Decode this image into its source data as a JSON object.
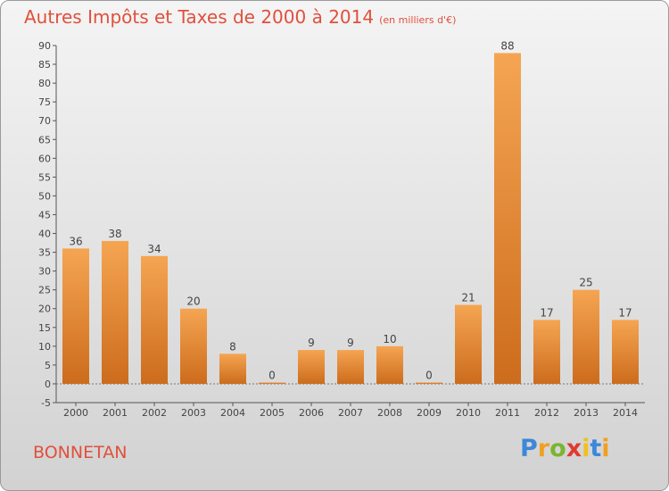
{
  "chart_data": {
    "type": "bar",
    "title": "Autres Impôts et Taxes de 2000 à 2014",
    "subtitle": "(en milliers d'€)",
    "categories": [
      "2000",
      "2001",
      "2002",
      "2003",
      "2004",
      "2005",
      "2006",
      "2007",
      "2008",
      "2009",
      "2010",
      "2011",
      "2012",
      "2013",
      "2014"
    ],
    "values": [
      36,
      38,
      34,
      20,
      8,
      0,
      9,
      9,
      10,
      0,
      21,
      88,
      17,
      25,
      17
    ],
    "ylim": [
      -5,
      90
    ],
    "yticks": [
      -5,
      0,
      5,
      10,
      15,
      20,
      25,
      30,
      35,
      40,
      45,
      50,
      55,
      60,
      65,
      70,
      75,
      80,
      85,
      90
    ],
    "grid": false,
    "bar_color_light": "#f5a552",
    "bar_color_dark": "#cc6c1c"
  },
  "place_name": "BONNETAN",
  "logo": {
    "letters": [
      "P",
      "r",
      "o",
      "x",
      "i",
      "t",
      "i"
    ],
    "colors": [
      "#3d87d8",
      "#f0a020",
      "#7ab530",
      "#e03a30",
      "#f0c020",
      "#3d87d8",
      "#f0a020"
    ]
  }
}
